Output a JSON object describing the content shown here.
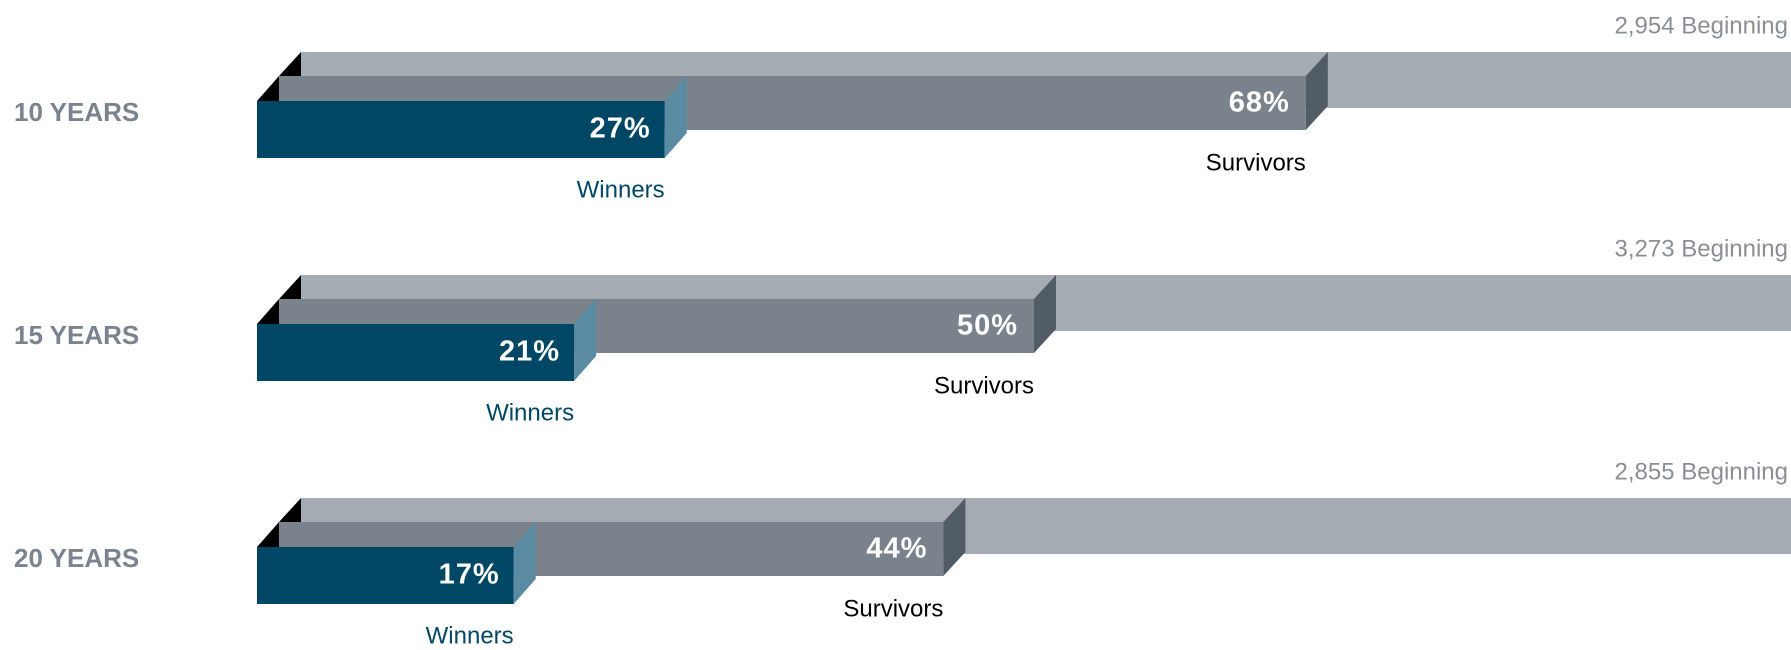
{
  "chart_data": {
    "type": "bar3d",
    "categories": [
      "10 YEARS",
      "15 YEARS",
      "20 YEARS"
    ],
    "beginning": {
      "values": [
        2954,
        3273,
        2855
      ],
      "value_labels": [
        "2,954 Beginning",
        "3,273 Beginning",
        "2,855 Beginning"
      ],
      "color": "#a5abb3"
    },
    "series": [
      {
        "name": "Survivors",
        "color": "#7a838c",
        "side_color": "#525c66",
        "label_color": "#000000",
        "values": [
          68,
          50,
          44
        ],
        "value_labels": [
          "68%",
          "50%",
          "44%"
        ]
      },
      {
        "name": "Winners",
        "color": "#004766",
        "side_color": "#5b8aa3",
        "label_color": "#004766",
        "values": [
          27,
          21,
          17
        ],
        "value_labels": [
          "27%",
          "21%",
          "17%"
        ]
      }
    ],
    "xlim": [
      0,
      100
    ]
  }
}
